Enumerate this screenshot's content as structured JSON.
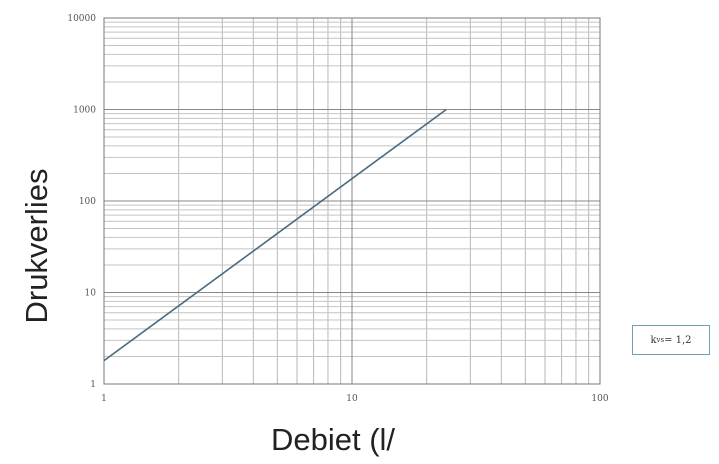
{
  "chart_data": {
    "type": "line",
    "title": "",
    "xlabel": "Debiet (l/",
    "ylabel": "Drukverlies",
    "xscale": "log",
    "yscale": "log",
    "xlim": [
      1,
      100
    ],
    "ylim": [
      1,
      10000
    ],
    "grid": true,
    "x_ticks": [
      {
        "value": 1,
        "label": "1"
      },
      {
        "value": 10,
        "label": "10"
      },
      {
        "value": 100,
        "label": "100"
      }
    ],
    "y_ticks": [
      {
        "value": 1,
        "label": "1"
      },
      {
        "value": 10,
        "label": "10"
      },
      {
        "value": 100,
        "label": "100"
      },
      {
        "value": 1000,
        "label": "1000"
      },
      {
        "value": 10000,
        "label": "10000"
      }
    ],
    "series": [
      {
        "color": "#4a6a80",
        "points": [
          {
            "x": 1,
            "y": 1.8
          },
          {
            "x": 24,
            "y": 1000
          }
        ]
      }
    ],
    "annotation": {
      "k": "k",
      "sub": "vs",
      "rest": " = 1,2"
    }
  }
}
